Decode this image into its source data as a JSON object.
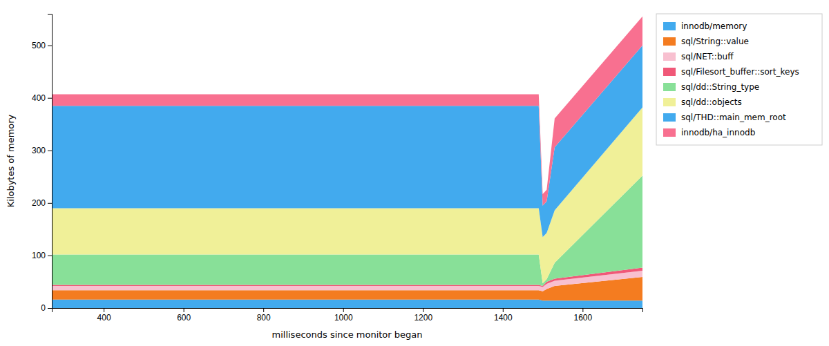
{
  "chart_data": {
    "type": "area",
    "stacked": true,
    "x": [
      270,
      300,
      1490,
      1500,
      1510,
      1530,
      1750
    ],
    "series": [
      {
        "name": "innodb/memory",
        "color": "#42aaee",
        "values": [
          16,
          16,
          16,
          14,
          14,
          14,
          14
        ]
      },
      {
        "name": "sql/String::value",
        "color": "#f47c20",
        "values": [
          18,
          18,
          18,
          18,
          22,
          28,
          45
        ]
      },
      {
        "name": "sql/NET::buff",
        "color": "#f8c0d0",
        "values": [
          8,
          8,
          8,
          8,
          10,
          10,
          12
        ]
      },
      {
        "name": "sql/Filesort_buffer::sort_keys",
        "color": "#f05878",
        "values": [
          2,
          2,
          2,
          2,
          4,
          4,
          6
        ]
      },
      {
        "name": "sql/dd::String_type",
        "color": "#88e098",
        "values": [
          58,
          58,
          58,
          5,
          5,
          30,
          175
        ]
      },
      {
        "name": "sql/dd::objects",
        "color": "#f0f098",
        "values": [
          88,
          88,
          88,
          88,
          88,
          100,
          130
        ]
      },
      {
        "name": "sql/THD::main_mem_root",
        "color": "#42aaee",
        "values": [
          195,
          195,
          195,
          60,
          60,
          120,
          118
        ]
      },
      {
        "name": "innodb/ha_innodb",
        "color": "#f87090",
        "values": [
          22,
          22,
          22,
          22,
          22,
          55,
          55
        ]
      }
    ],
    "xlabel": "milliseconds since monitor began",
    "ylabel": "Kilobytes of memory",
    "xlim": [
      270,
      1750
    ],
    "ylim": [
      0,
      560
    ],
    "xticks": [
      400,
      600,
      800,
      1000,
      1200,
      1400,
      1600
    ],
    "yticks": [
      0,
      100,
      200,
      300,
      400,
      500
    ],
    "grid": false,
    "legend": "right"
  }
}
